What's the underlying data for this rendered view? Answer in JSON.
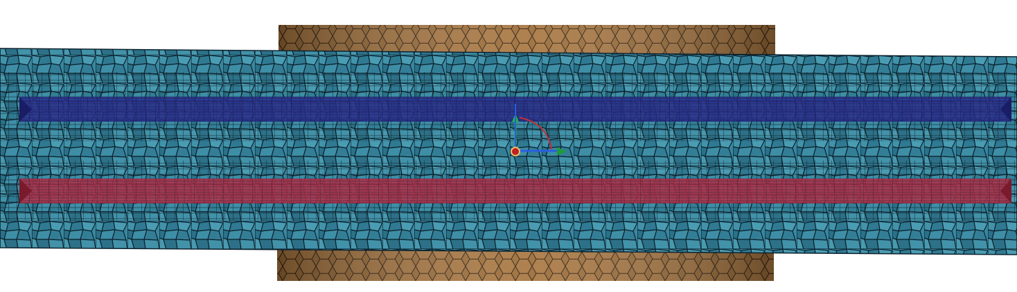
{
  "scene": {
    "background_color": "#ffffff",
    "objects": [
      {
        "name": "outer-ring",
        "color": "#9a6a35",
        "cell_style": "hexagonal"
      },
      {
        "name": "fluid-body",
        "color": "#3a8fa8",
        "cell_style": "polyhedral"
      },
      {
        "name": "upper-pipe",
        "color": "#2b2f8f",
        "cell_style": "prism-layers"
      },
      {
        "name": "lower-pipe",
        "color": "#b03048",
        "cell_style": "prism-layers"
      }
    ],
    "triad": {
      "x_axis_color": "#1f9a3a",
      "y_axis_color": "#22b14c",
      "z_axis_color": "#2a5ee0",
      "arc_color": "#c0303a",
      "origin_color": "#c02020"
    }
  }
}
